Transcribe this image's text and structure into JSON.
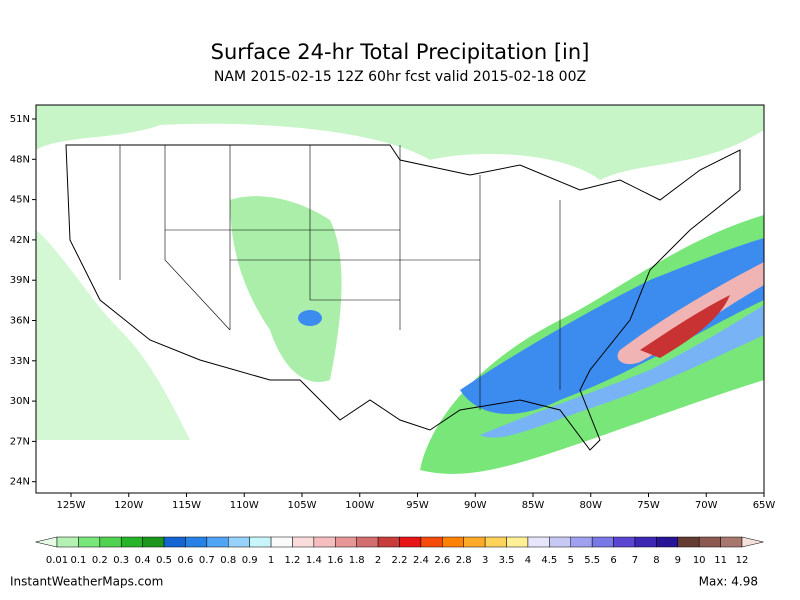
{
  "header": {
    "title": "Surface 24-hr Total Precipitation [in]",
    "subtitle": "NAM 2015-02-15 12Z 60hr fcst valid 2015-02-18 00Z"
  },
  "map": {
    "lat_labels": [
      "51N",
      "48N",
      "45N",
      "42N",
      "39N",
      "36N",
      "33N",
      "30N",
      "27N",
      "24N"
    ],
    "lon_labels": [
      "125W",
      "120W",
      "115W",
      "110W",
      "105W",
      "100W",
      "95W",
      "90W",
      "85W",
      "80W",
      "75W",
      "70W",
      "65W"
    ]
  },
  "colorbar": {
    "labels": [
      "0.01",
      "0.1",
      "0.2",
      "0.3",
      "0.4",
      "0.5",
      "0.6",
      "0.7",
      "0.8",
      "0.9",
      "1",
      "1.2",
      "1.4",
      "1.6",
      "1.8",
      "2",
      "2.2",
      "2.4",
      "2.6",
      "2.8",
      "3",
      "3.5",
      "4",
      "4.5",
      "5",
      "5.5",
      "6",
      "7",
      "8",
      "9",
      "10",
      "11",
      "12"
    ],
    "colors": [
      "#e6fae6",
      "#b4f0b4",
      "#78e678",
      "#50d250",
      "#28b428",
      "#1e961e",
      "#1464d2",
      "#2882e6",
      "#50a5f5",
      "#96d2fa",
      "#c8f5fa",
      "#fafafa",
      "#fadcdc",
      "#f5bebe",
      "#e69696",
      "#d26e6e",
      "#c83c3c",
      "#e61414",
      "#f54b0a",
      "#ff8200",
      "#ffaa28",
      "#ffd25a",
      "#fff096",
      "#e6e6fa",
      "#c8c8f5",
      "#a0a0f0",
      "#7878e6",
      "#5a46d2",
      "#3c28b4",
      "#281496",
      "#643c32",
      "#8c5a50",
      "#a8786e",
      "#c09a90",
      "#dcbeb4",
      "#f5e1dc"
    ]
  },
  "footer": {
    "source": "InstantWeatherMaps.com",
    "max": "Max:  4.98"
  }
}
